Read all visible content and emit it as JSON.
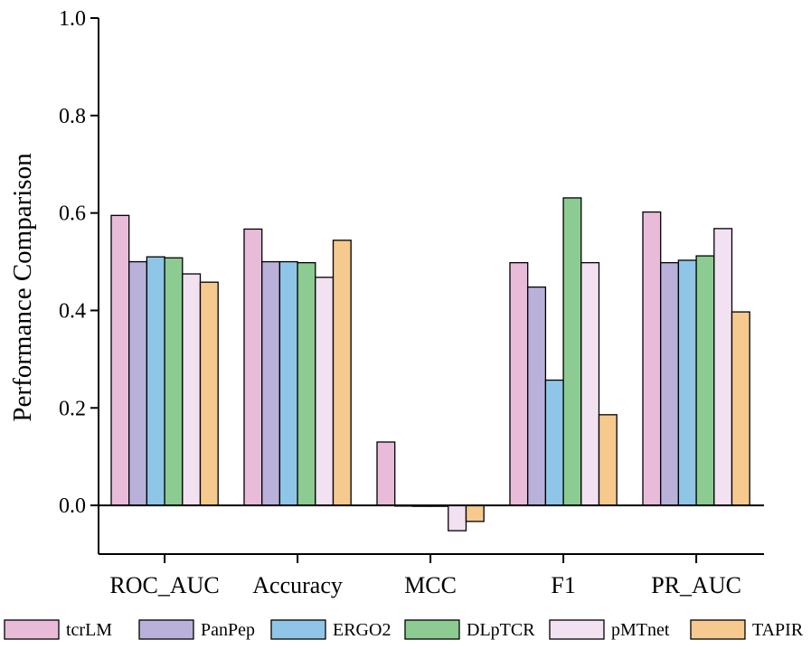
{
  "chart_data": {
    "type": "bar",
    "title": "",
    "xlabel": "",
    "ylabel": "Performance Comparison",
    "ylim": [
      -0.1,
      1.0
    ],
    "yticks": [
      "0.0",
      "0.2",
      "0.4",
      "0.6",
      "0.8",
      "1.0"
    ],
    "grid": false,
    "legend_position": "bottom",
    "categories": [
      "ROC_AUC",
      "Accuracy",
      "MCC",
      "F1",
      "PR_AUC"
    ],
    "series": [
      {
        "name": "tcrLM",
        "color": "#e8bcd8",
        "values": [
          0.595,
          0.567,
          0.13,
          0.498,
          0.602
        ]
      },
      {
        "name": "PanPep",
        "color": "#b9b1da",
        "values": [
          0.5,
          0.5,
          0.0,
          0.448,
          0.498
        ]
      },
      {
        "name": "ERGO2",
        "color": "#8fc6e8",
        "values": [
          0.51,
          0.5,
          -0.002,
          0.257,
          0.503
        ]
      },
      {
        "name": "DLpTCR",
        "color": "#8ccb91",
        "values": [
          0.508,
          0.498,
          -0.002,
          0.631,
          0.512
        ]
      },
      {
        "name": "pMTnet",
        "color": "#f1e1f1",
        "values": [
          0.475,
          0.468,
          -0.052,
          0.498,
          0.568
        ]
      },
      {
        "name": "TAPIR",
        "color": "#f6c98f",
        "values": [
          0.458,
          0.544,
          -0.033,
          0.186,
          0.397
        ]
      }
    ]
  }
}
